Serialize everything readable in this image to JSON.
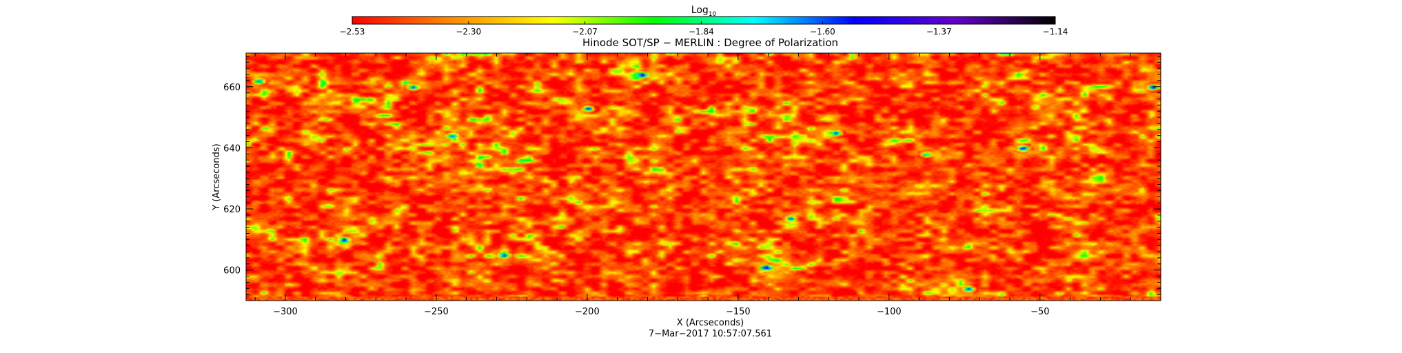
{
  "colorbar": {
    "label": "Log",
    "label_sub": "10",
    "ticks": [
      -2.53,
      -2.3,
      -2.07,
      -1.84,
      -1.6,
      -1.37,
      -1.14
    ],
    "tick_labels": [
      "−2.53",
      "−2.30",
      "−2.07",
      "−1.84",
      "−1.60",
      "−1.37",
      "−1.14"
    ],
    "range": [
      -2.53,
      -1.14
    ],
    "colors": [
      "#ff0000",
      "#ff8c00",
      "#ffff00",
      "#00ff00",
      "#00ffff",
      "#0000ff",
      "#6600cc",
      "#000000"
    ]
  },
  "chart_data": {
    "type": "heatmap",
    "title": "Hinode SOT/SP − MERLIN : Degree of Polarization",
    "xlabel": "X (Arcseconds)",
    "ylabel": "Y (Arcseconds)",
    "xlim": [
      -313,
      -10
    ],
    "ylim": [
      590,
      671
    ],
    "x_ticks": [
      -300,
      -250,
      -200,
      -150,
      -100,
      -50
    ],
    "x_tick_labels": [
      "−300",
      "−250",
      "−200",
      "−150",
      "−100",
      "−50"
    ],
    "y_ticks": [
      600,
      620,
      640,
      660
    ],
    "y_tick_labels": [
      "600",
      "620",
      "640",
      "660"
    ],
    "value_range": [
      -2.53,
      -1.14
    ],
    "background_level": -2.3,
    "strong_polarization_features": [
      {
        "x": -309,
        "y": 662,
        "value": -1.6
      },
      {
        "x": -258,
        "y": 660,
        "value": -1.55
      },
      {
        "x": -245,
        "y": 644,
        "value": -1.6
      },
      {
        "x": -281,
        "y": 610,
        "value": -1.45
      },
      {
        "x": -228,
        "y": 605,
        "value": -1.5
      },
      {
        "x": -222,
        "y": 591,
        "value": -1.4
      },
      {
        "x": -200,
        "y": 653,
        "value": -1.5
      },
      {
        "x": -182,
        "y": 664,
        "value": -1.45
      },
      {
        "x": -141,
        "y": 601,
        "value": -1.45
      },
      {
        "x": -133,
        "y": 617,
        "value": -1.55
      },
      {
        "x": -118,
        "y": 645,
        "value": -1.55
      },
      {
        "x": -74,
        "y": 594,
        "value": -1.5
      },
      {
        "x": -56,
        "y": 640,
        "value": -1.4
      },
      {
        "x": -13,
        "y": 660,
        "value": -1.45
      },
      {
        "x": -88,
        "y": 638,
        "value": -1.7
      },
      {
        "x": -162,
        "y": 591,
        "value": -1.55
      }
    ]
  },
  "timestamp": "7−Mar−2017 10:57:07.561"
}
